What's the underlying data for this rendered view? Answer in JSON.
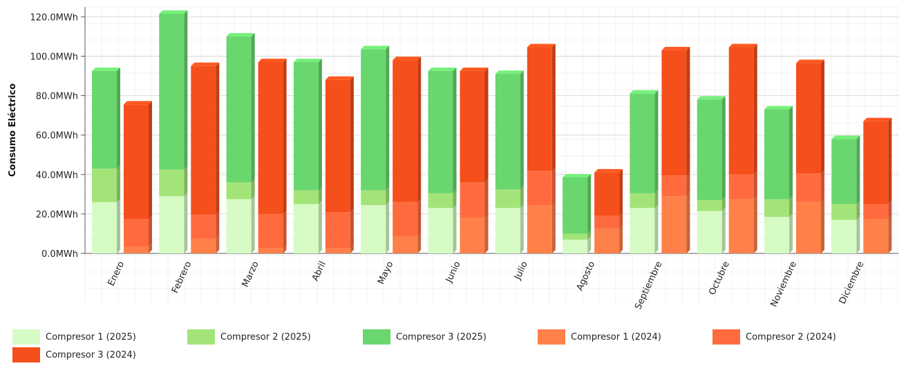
{
  "chart_data": {
    "type": "bar",
    "stacked": true,
    "grouped_by": "year",
    "ylabel": "Consumo Eléctrico",
    "ylim": [
      0,
      125
    ],
    "yticks": [
      0,
      20,
      40,
      60,
      80,
      100,
      120
    ],
    "ytick_labels": [
      "0.0MWh",
      "20.0MWh",
      "40.0MWh",
      "60.0MWh",
      "80.0MWh",
      "100.0MWh",
      "120.0MWh"
    ],
    "grid": true,
    "legend_position": "bottom-left",
    "categories": [
      "Enero",
      "Febrero",
      "Marzo",
      "Abril",
      "Mayo",
      "Junio",
      "Julio",
      "Agosto",
      "Septiembre",
      "Octubre",
      "Noviembre",
      "Diciembre"
    ],
    "series": [
      {
        "name": "Compresor 1 (2025)",
        "stack": "2025",
        "color": "#d6fbc4",
        "values": [
          26,
          29,
          27.5,
          25,
          24.5,
          23,
          23,
          7,
          23,
          21.5,
          18.5,
          17
        ]
      },
      {
        "name": "Compresor 2 (2025)",
        "stack": "2025",
        "color": "#a3e478",
        "values": [
          17,
          13.5,
          8.5,
          7,
          7.5,
          7.5,
          9.5,
          3,
          7.5,
          5.5,
          9,
          8
        ]
      },
      {
        "name": "Compresor 3 (2025)",
        "stack": "2025",
        "color": "#69d66e",
        "values": [
          49.5,
          79,
          74,
          65,
          71.5,
          62,
          58.5,
          28.5,
          50.5,
          51,
          45.5,
          33
        ]
      },
      {
        "name": "Compresor 1 (2024)",
        "stack": "2024",
        "color": "#ff8049",
        "values": [
          3.5,
          7.5,
          2.5,
          2.5,
          8.5,
          18,
          24.5,
          12.5,
          29,
          27.5,
          26,
          17.5
        ]
      },
      {
        "name": "Compresor 2 (2024)",
        "stack": "2024",
        "color": "#ff6b3f",
        "values": [
          14,
          12,
          17.5,
          18.5,
          17.5,
          18,
          17.5,
          6.5,
          10.5,
          12.5,
          14.5,
          7.5
        ]
      },
      {
        "name": "Compresor 3 (2024)",
        "stack": "2024",
        "color": "#f54f1c",
        "values": [
          58,
          75.5,
          77,
          67,
          72,
          56.5,
          62.5,
          22,
          63.5,
          64.5,
          56,
          42
        ]
      }
    ]
  }
}
